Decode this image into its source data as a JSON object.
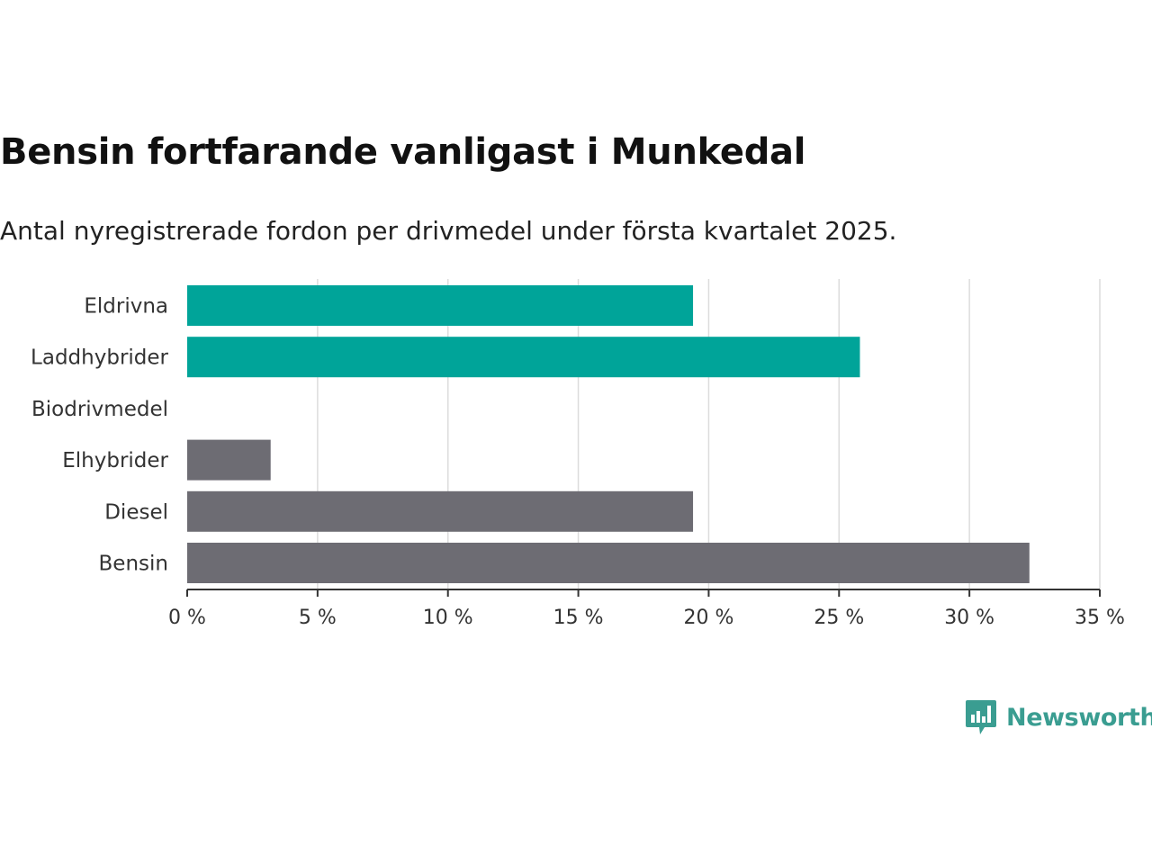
{
  "header": {
    "title": "Bensin fortfarande vanligast i Munkedal",
    "subtitle": "Antal nyregistrerade fordon per drivmedel under första kvartalet 2025."
  },
  "chart_data": {
    "type": "bar",
    "orientation": "horizontal",
    "categories": [
      "Eldrivna",
      "Laddhybrider",
      "Biodrivmedel",
      "Elhybrider",
      "Diesel",
      "Bensin"
    ],
    "values": [
      19.4,
      25.8,
      0,
      3.2,
      19.4,
      32.3
    ],
    "value_unit": "%",
    "bar_colors": [
      "#00a499",
      "#00a499",
      "#00a499",
      "#6d6c73",
      "#6d6c73",
      "#6d6c73"
    ],
    "xlim": [
      0,
      35
    ],
    "x_ticks": [
      0,
      5,
      10,
      15,
      20,
      25,
      30,
      35
    ],
    "x_tick_labels": [
      "0 %",
      "5 %",
      "10 %",
      "15 %",
      "20 %",
      "25 %",
      "30 %",
      "35 %"
    ],
    "grid": "vertical",
    "xlabel": "",
    "ylabel": ""
  },
  "branding": {
    "logo_name": "Newsworthy",
    "logo_icon": "newsworthy-bar-chart-icon",
    "color": "#3a9d91"
  }
}
